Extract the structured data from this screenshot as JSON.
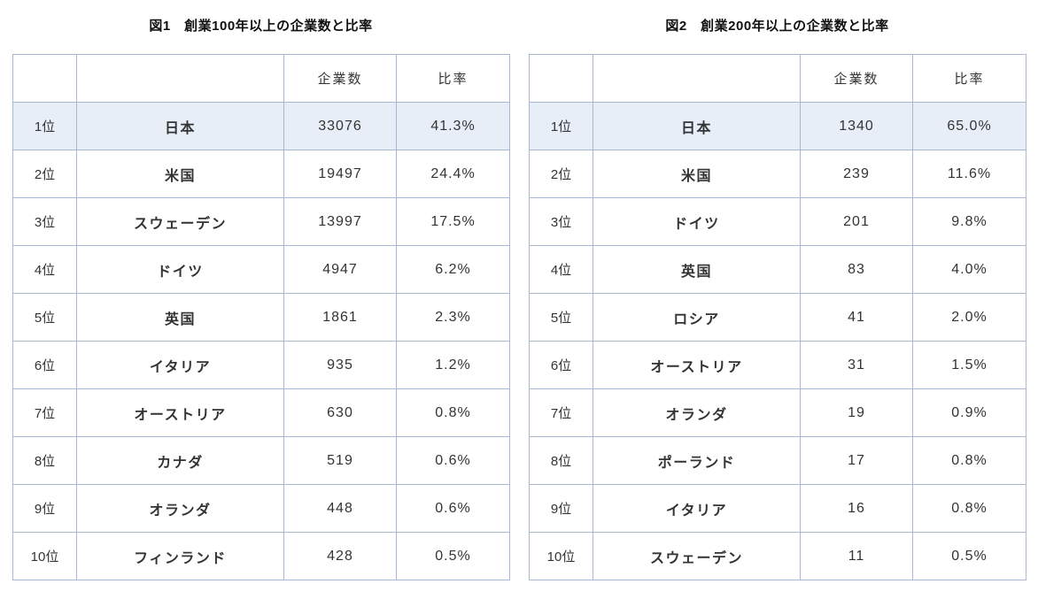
{
  "colors": {
    "background": "#ffffff",
    "table_border": "#a7b7d0",
    "highlight_row_background": "#e8eef8",
    "text": "#333333",
    "title_text": "#111111"
  },
  "chart_data": [
    {
      "type": "table",
      "title": "図1　創業100年以上の企業数と比率",
      "headers": [
        "",
        "",
        "企業数",
        "比率"
      ],
      "rows": [
        [
          "1位",
          "日本",
          "33076",
          "41.3%"
        ],
        [
          "2位",
          "米国",
          "19497",
          "24.4%"
        ],
        [
          "3位",
          "スウェーデン",
          "13997",
          "17.5%"
        ],
        [
          "4位",
          "ドイツ",
          "4947",
          "6.2%"
        ],
        [
          "5位",
          "英国",
          "1861",
          "2.3%"
        ],
        [
          "6位",
          "イタリア",
          "935",
          "1.2%"
        ],
        [
          "7位",
          "オーストリア",
          "630",
          "0.8%"
        ],
        [
          "8位",
          "カナダ",
          "519",
          "0.6%"
        ],
        [
          "9位",
          "オランダ",
          "448",
          "0.6%"
        ],
        [
          "10位",
          "フィンランド",
          "428",
          "0.5%"
        ]
      ],
      "highlight_row_index": 0
    },
    {
      "type": "table",
      "title": "図2　創業200年以上の企業数と比率",
      "headers": [
        "",
        "",
        "企業数",
        "比率"
      ],
      "rows": [
        [
          "1位",
          "日本",
          "1340",
          "65.0%"
        ],
        [
          "2位",
          "米国",
          "239",
          "11.6%"
        ],
        [
          "3位",
          "ドイツ",
          "201",
          "9.8%"
        ],
        [
          "4位",
          "英国",
          "83",
          "4.0%"
        ],
        [
          "5位",
          "ロシア",
          "41",
          "2.0%"
        ],
        [
          "6位",
          "オーストリア",
          "31",
          "1.5%"
        ],
        [
          "7位",
          "オランダ",
          "19",
          "0.9%"
        ],
        [
          "8位",
          "ポーランド",
          "17",
          "0.8%"
        ],
        [
          "9位",
          "イタリア",
          "16",
          "0.8%"
        ],
        [
          "10位",
          "スウェーデン",
          "11",
          "0.5%"
        ]
      ],
      "highlight_row_index": 0
    }
  ]
}
